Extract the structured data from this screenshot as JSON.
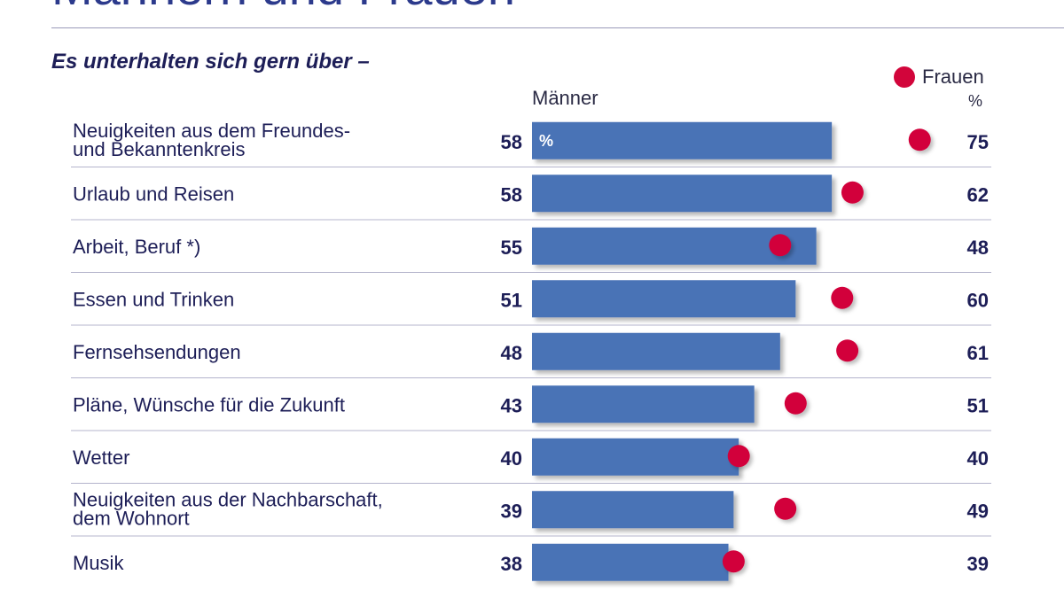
{
  "header": {
    "title": "Männern und Frauen",
    "subtitle": "Es unterhalten sich gern über –"
  },
  "colors": {
    "men_bar": "#4a73b6",
    "women_dot": "#d2053b",
    "text": "#1d1e57",
    "rule": "#b4b4cc"
  },
  "chart_data": {
    "type": "bar",
    "orientation": "horizontal",
    "title": "Es unterhalten sich gern über –",
    "unit": "%",
    "bar_unit_label": "%",
    "legend": {
      "men": "Männer",
      "women": "Frauen",
      "women_unit": "%"
    },
    "categories": [
      [
        "Neuigkeiten aus dem Freundes-",
        "und Bekanntenkreis"
      ],
      [
        "Urlaub und Reisen"
      ],
      [
        "Arbeit, Beruf *)"
      ],
      [
        "Essen und Trinken"
      ],
      [
        "Fernsehsendungen"
      ],
      [
        "Pläne, Wünsche für die Zukunft"
      ],
      [
        "Wetter"
      ],
      [
        "Neuigkeiten aus der Nachbarschaft,",
        "dem Wohnort"
      ],
      [
        "Musik"
      ]
    ],
    "series": [
      {
        "name": "Männer",
        "marker": "bar",
        "values": [
          58,
          58,
          55,
          51,
          48,
          43,
          40,
          39,
          38
        ]
      },
      {
        "name": "Frauen",
        "marker": "dot",
        "values": [
          75,
          62,
          48,
          60,
          61,
          51,
          40,
          49,
          39
        ]
      }
    ],
    "xlim": [
      0,
      100
    ]
  }
}
